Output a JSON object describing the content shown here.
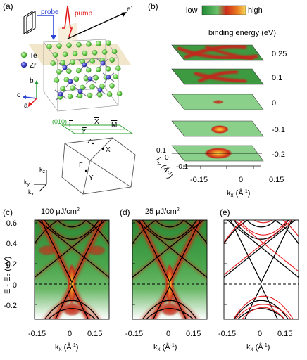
{
  "panels": {
    "a": {
      "label": "(a)",
      "probe": "probe",
      "pump": "pump",
      "electron": "e",
      "electron_sup": "-",
      "legend_te": "Te",
      "legend_zr": "Zr",
      "axis_b": "b",
      "axis_c": "c",
      "axis_a": "a",
      "surface_index": "(010)",
      "bz_gamma_bar": "Γ",
      "bz_x_bar": "X",
      "bz_y_bar": "Y",
      "bz_m_bar": "M",
      "bz_z": "Z",
      "bz_x": "X",
      "bz_gamma": "Γ",
      "bz_y": "Y",
      "kz": "k",
      "kz_sub": "z",
      "ky": "k",
      "ky_sub": "y",
      "kx": "k",
      "kx_sub": "x"
    },
    "b": {
      "label": "(b)",
      "colorbar_low": "low",
      "colorbar_high": "high",
      "title": "binding energy (eV)",
      "energies": [
        "0.25",
        "0.1",
        "0",
        "-0.1",
        "-0.2"
      ],
      "ky_ticks": [
        "0.1",
        "0",
        "-0.1"
      ],
      "ky_label": "k",
      "ky_sub": "y",
      "ky_unit": "(Å",
      "ky_unit_sup": "-1",
      "ky_unit_close": ")",
      "kx_ticks": [
        "-0.15",
        "0",
        "0.15"
      ],
      "kx_label": "k",
      "kx_sub": "x",
      "kx_unit": "(Å",
      "kx_unit_sup": "-1",
      "kx_unit_close": ")"
    },
    "c": {
      "label": "(c)",
      "fluence": "100 μJ/cm",
      "fluence_sup": "2",
      "y_ticks": [
        "0.6",
        "0.4",
        "0.2",
        "0",
        "-0.2"
      ],
      "ylabel": "E - E",
      "ylabel_sub": "F",
      "ylabel_unit": "(eV)",
      "x_ticks": [
        "-0.15",
        "0",
        "0.15"
      ],
      "xlabel": "k",
      "xlabel_sub": "x",
      "xlabel_unit": "(Å",
      "xlabel_sup": "-1",
      "xlabel_close": ")"
    },
    "d": {
      "label": "(d)",
      "fluence": "25 μJ/cm",
      "fluence_sup": "2",
      "x_ticks": [
        "-0.15",
        "0",
        "0.15"
      ],
      "xlabel": "k",
      "xlabel_sub": "x",
      "xlabel_unit": "(Å",
      "xlabel_sup": "-1",
      "xlabel_close": ")"
    },
    "e": {
      "label": "(e)",
      "x_ticks": [
        "-0.15",
        "0",
        "0.15"
      ],
      "xlabel": "k",
      "xlabel_sub": "x",
      "xlabel_unit": "(Å",
      "xlabel_sup": "-1",
      "xlabel_close": ")"
    }
  },
  "colors": {
    "probe": "#2b44d6",
    "pump": "#e01b1b",
    "te_atom": "#7ed957",
    "zr_atom": "#4a4ad0",
    "arpes_background": "#2f9a3a",
    "arpes_band": "#cf2a18",
    "band_black": "#000000",
    "band_red": "#e41a1c",
    "fermi_dash": "#000000"
  }
}
